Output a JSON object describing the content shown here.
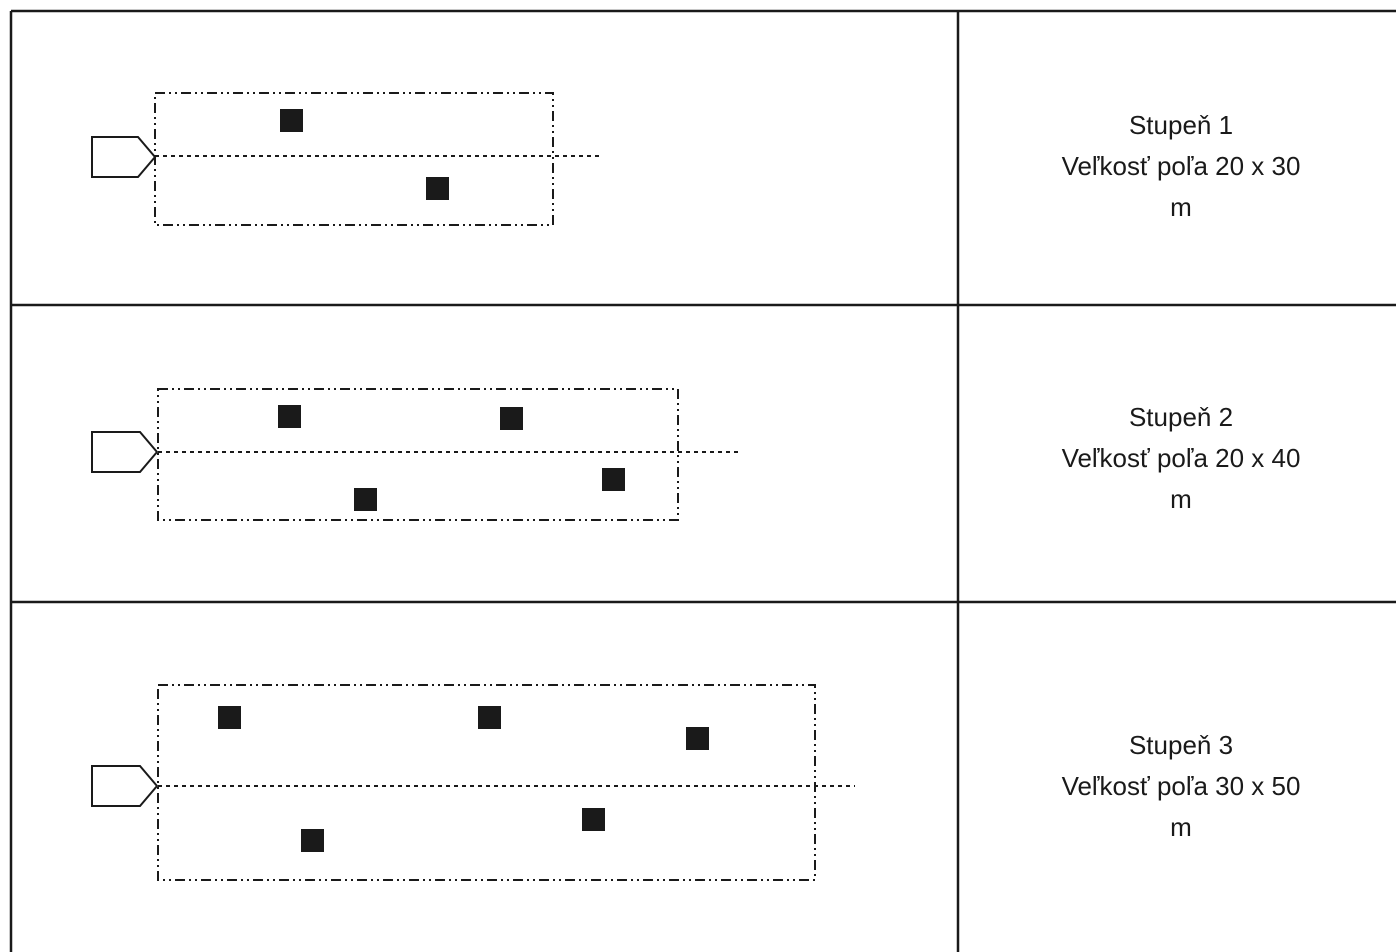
{
  "colors": {
    "line": "#1a1a1a",
    "marker": "#1a1a1a",
    "background": "#ffffff"
  },
  "icons": {
    "start": "pentagon-arrow-icon",
    "marker": "square-marker-icon"
  },
  "rows": [
    {
      "stage_label": "Stupeň 1",
      "size_label": "Veľkosť poľa 20 x 30",
      "unit_label": "m",
      "field_size_m": [
        20,
        30
      ],
      "markers": 2
    },
    {
      "stage_label": "Stupeň 2",
      "size_label": "Veľkosť poľa 20 x 40",
      "unit_label": "m",
      "field_size_m": [
        20,
        40
      ],
      "markers": 4
    },
    {
      "stage_label": "Stupeň 3",
      "size_label": "Veľkosť poľa 30 x 50",
      "unit_label": "m",
      "field_size_m": [
        30,
        50
      ],
      "markers": 5
    }
  ]
}
